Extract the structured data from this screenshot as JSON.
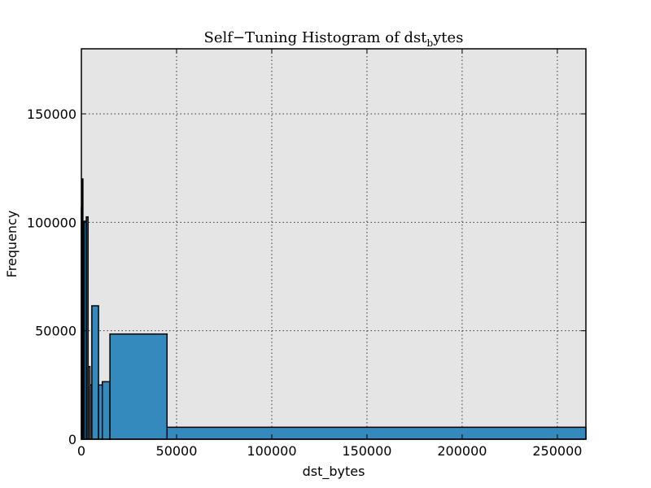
{
  "chart_data": {
    "type": "bar",
    "title_main": "Self−Tuning Histogram of dst",
    "title_sub": "b",
    "title_tail": "ytes",
    "xlabel": "dst_bytes",
    "ylabel": "Frequency",
    "xlim": [
      0,
      265000
    ],
    "ylim": [
      0,
      180000
    ],
    "grid": true,
    "background": "#E5E5E5",
    "bar_color": "#348ABD",
    "xticks": [
      0,
      50000,
      100000,
      150000,
      200000,
      250000
    ],
    "xtick_labels": [
      "0",
      "50000",
      "100000",
      "150000",
      "200000",
      "250000"
    ],
    "yticks": [
      0,
      50000,
      100000,
      150000
    ],
    "ytick_labels": [
      "0",
      "50000",
      "100000",
      "150000"
    ],
    "bins": [
      {
        "x0": 0,
        "x1": 300,
        "value": 107000
      },
      {
        "x0": 300,
        "x1": 800,
        "value": 120000
      },
      {
        "x0": 800,
        "x1": 1500,
        "value": 100000
      },
      {
        "x0": 1500,
        "x1": 2600,
        "value": 100500
      },
      {
        "x0": 2600,
        "x1": 3500,
        "value": 102500
      },
      {
        "x0": 3500,
        "x1": 4500,
        "value": 33500
      },
      {
        "x0": 4500,
        "x1": 5500,
        "value": 25000
      },
      {
        "x0": 5500,
        "x1": 9000,
        "value": 61500
      },
      {
        "x0": 9000,
        "x1": 11000,
        "value": 25000
      },
      {
        "x0": 11000,
        "x1": 15000,
        "value": 26500
      },
      {
        "x0": 15000,
        "x1": 45000,
        "value": 48500
      },
      {
        "x0": 45000,
        "x1": 265000,
        "value": 5500
      }
    ]
  }
}
